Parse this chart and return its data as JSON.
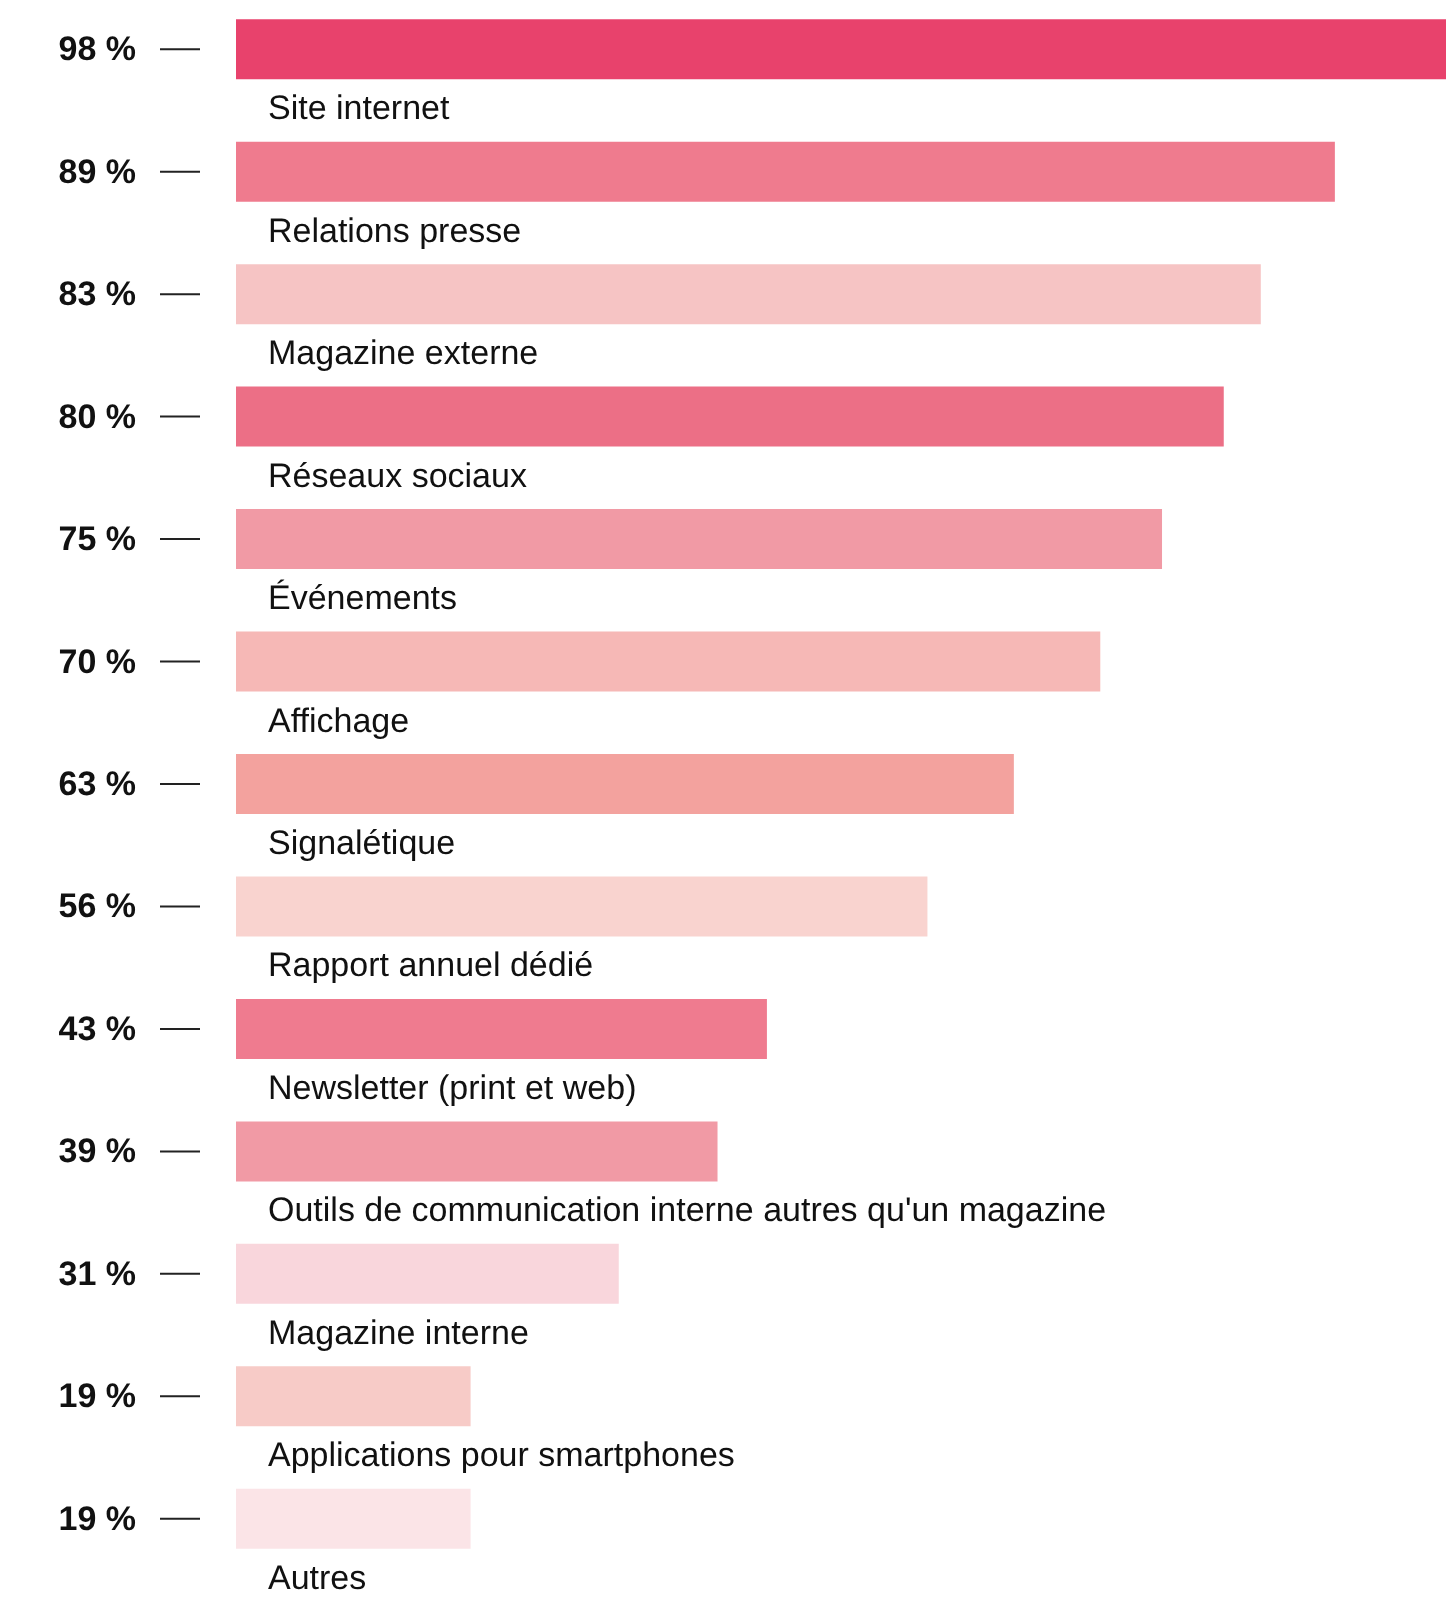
{
  "chart_data": {
    "type": "bar",
    "orientation": "horizontal",
    "categories": [
      "Site internet",
      "Relations presse",
      "Magazine externe",
      "Réseaux sociaux",
      "Événements",
      "Affichage",
      "Signalétique",
      "Rapport annuel dédié",
      "Newsletter (print et web)",
      "Outils de communication interne autres qu'un magazine",
      "Magazine interne",
      "Applications pour smartphones",
      "Autres"
    ],
    "values": [
      98,
      89,
      83,
      80,
      75,
      70,
      63,
      56,
      43,
      39,
      31,
      19,
      19
    ],
    "value_labels": [
      "98 %",
      "89 %",
      "83 %",
      "80 %",
      "75 %",
      "70 %",
      "63 %",
      "56 %",
      "43 %",
      "39 %",
      "31 %",
      "19 %",
      "19 %"
    ],
    "colors": [
      "#e8426c",
      "#ef7b8e",
      "#f6c4c4",
      "#ec6f86",
      "#f19aa5",
      "#f6b8b6",
      "#f3a29e",
      "#f9d3cf",
      "#ef7b8f",
      "#f19aa5",
      "#f9d6dc",
      "#f7cbc7",
      "#fbe4e7"
    ]
  }
}
